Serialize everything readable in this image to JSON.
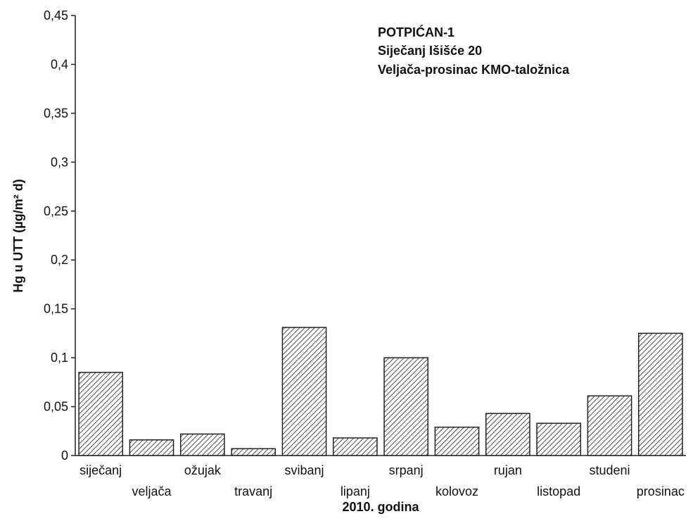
{
  "chart_data": {
    "type": "bar",
    "title": "",
    "annotations": [
      "POTPIĆAN-1",
      "Siječanj Išišće 20",
      "Veljača-prosinac KMO-taložnica"
    ],
    "xlabel": "2010. godina",
    "ylabel": "Hg u UTT (µg/m² d)",
    "categories": [
      "siječanj",
      "veljača",
      "ožujak",
      "travanj",
      "svibanj",
      "lipanj",
      "srpanj",
      "kolovoz",
      "rujan",
      "listopad",
      "studeni",
      "prosinac"
    ],
    "values": [
      0.085,
      0.016,
      0.022,
      0.007,
      0.131,
      0.018,
      0.1,
      0.029,
      0.043,
      0.033,
      0.061,
      0.125
    ],
    "ylim": [
      0,
      0.45
    ],
    "yticks": [
      "0",
      "0,05",
      "0,1",
      "0,15",
      "0,2",
      "0,25",
      "0,3",
      "0,35",
      "0,4",
      "0,45"
    ],
    "grid": false,
    "legend": "none",
    "bar_pattern": "diagonal hatch",
    "colors": {
      "bar_stroke": "#222222",
      "hatch": "#222222",
      "axis": "#222222"
    }
  }
}
